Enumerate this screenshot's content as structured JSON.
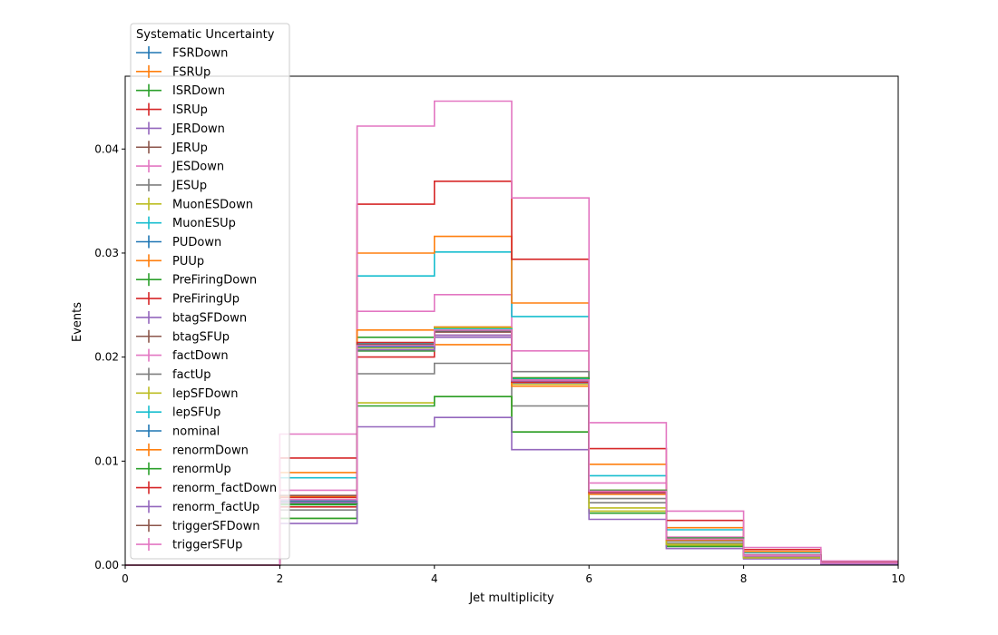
{
  "chart_data": {
    "type": "line",
    "title": "",
    "xlabel": "Jet multiplicity",
    "ylabel": "Events",
    "xlim": [
      0,
      10
    ],
    "ylim": [
      0,
      0.047
    ],
    "grid": false,
    "legend_title": "Systematic Uncertainty",
    "legend_placement": "upper-left",
    "bin_edges": [
      0,
      1,
      2,
      3,
      4,
      5,
      6,
      7,
      8,
      9,
      10
    ],
    "x_ticks": [
      "0",
      "2",
      "4",
      "6",
      "8",
      "10"
    ],
    "y_ticks": [
      "0.00",
      "0.01",
      "0.02",
      "0.03",
      "0.04"
    ],
    "series": [
      {
        "name": "FSRDown",
        "color": "#1f77b4",
        "values": [
          0,
          0,
          0.0061,
          0.0209,
          0.0225,
          0.0178,
          0.007,
          0.0025,
          0.0009,
          0.0002
        ]
      },
      {
        "name": "FSRUp",
        "color": "#ff7f0e",
        "values": [
          0,
          0,
          0.0063,
          0.0212,
          0.0229,
          0.018,
          0.0072,
          0.0026,
          0.001,
          0.0002
        ]
      },
      {
        "name": "ISRDown",
        "color": "#2ca02c",
        "values": [
          0,
          0,
          0.0058,
          0.0219,
          0.0228,
          0.0176,
          0.007,
          0.0025,
          0.0009,
          0.0002
        ]
      },
      {
        "name": "ISRUp",
        "color": "#d62728",
        "values": [
          0,
          0,
          0.0056,
          0.02,
          0.0221,
          0.0176,
          0.007,
          0.0025,
          0.0009,
          0.0002
        ]
      },
      {
        "name": "JERDown",
        "color": "#9467bd",
        "values": [
          0,
          0,
          0.0061,
          0.0206,
          0.0221,
          0.0175,
          0.0069,
          0.0025,
          0.0009,
          0.0002
        ]
      },
      {
        "name": "JERUp",
        "color": "#8c564b",
        "values": [
          0,
          0,
          0.006,
          0.021,
          0.0226,
          0.0177,
          0.0071,
          0.0025,
          0.0009,
          0.0002
        ]
      },
      {
        "name": "JESDown",
        "color": "#e377c2",
        "values": [
          0,
          0,
          0.0072,
          0.0244,
          0.026,
          0.0206,
          0.0079,
          0.0027,
          0.001,
          0.0002
        ]
      },
      {
        "name": "JESUp",
        "color": "#7f7f7f",
        "values": [
          0,
          0,
          0.0053,
          0.0184,
          0.0194,
          0.0153,
          0.006,
          0.0021,
          0.0008,
          0.0002
        ]
      },
      {
        "name": "MuonESDown",
        "color": "#bcbd22",
        "values": [
          0,
          0,
          0.0045,
          0.0156,
          0.0162,
          0.0128,
          0.0052,
          0.0019,
          0.0007,
          0.0001
        ]
      },
      {
        "name": "MuonESUp",
        "color": "#17becf",
        "values": [
          0,
          0,
          0.0084,
          0.0278,
          0.0301,
          0.0239,
          0.0086,
          0.0034,
          0.0012,
          0.0003
        ]
      },
      {
        "name": "PUDown",
        "color": "#1f77b4",
        "values": [
          0,
          0,
          0.0062,
          0.0212,
          0.0227,
          0.0179,
          0.0071,
          0.0025,
          0.0009,
          0.0002
        ]
      },
      {
        "name": "PUUp",
        "color": "#ff7f0e",
        "values": [
          0,
          0,
          0.0089,
          0.03,
          0.0316,
          0.0252,
          0.0097,
          0.0036,
          0.0013,
          0.0003
        ]
      },
      {
        "name": "PreFiringDown",
        "color": "#2ca02c",
        "values": [
          0,
          0,
          0.0045,
          0.0153,
          0.0162,
          0.0128,
          0.005,
          0.0018,
          0.0007,
          0.0001
        ]
      },
      {
        "name": "PreFiringUp",
        "color": "#d62728",
        "values": [
          0,
          0,
          0.0103,
          0.0347,
          0.0369,
          0.0294,
          0.0112,
          0.0043,
          0.0015,
          0.0003
        ]
      },
      {
        "name": "btagSFDown",
        "color": "#9467bd",
        "values": [
          0,
          0,
          0.004,
          0.0133,
          0.0142,
          0.0111,
          0.0044,
          0.0016,
          0.0006,
          0.0001
        ]
      },
      {
        "name": "btagSFUp",
        "color": "#8c564b",
        "values": [
          0,
          0,
          0.006,
          0.0209,
          0.0224,
          0.0177,
          0.007,
          0.0025,
          0.0009,
          0.0002
        ]
      },
      {
        "name": "factDown",
        "color": "#e377c2",
        "values": [
          0,
          0,
          0.0126,
          0.0422,
          0.0446,
          0.0353,
          0.0137,
          0.0052,
          0.0017,
          0.0004
        ]
      },
      {
        "name": "factUp",
        "color": "#7f7f7f",
        "values": [
          0,
          0,
          0.0061,
          0.021,
          0.0226,
          0.0186,
          0.0064,
          0.0023,
          0.0008,
          0.0002
        ]
      },
      {
        "name": "lepSFDown",
        "color": "#bcbd22",
        "values": [
          0,
          0,
          0.0062,
          0.0209,
          0.0228,
          0.0174,
          0.0055,
          0.002,
          0.0007,
          0.0002
        ]
      },
      {
        "name": "lepSFUp",
        "color": "#17becf",
        "values": [
          0,
          0,
          0.0063,
          0.0213,
          0.0227,
          0.0179,
          0.0071,
          0.0026,
          0.0009,
          0.0002
        ]
      },
      {
        "name": "nominal",
        "color": "#1f77b4",
        "values": [
          0,
          0,
          0.0062,
          0.021,
          0.0226,
          0.0178,
          0.0071,
          0.0025,
          0.0009,
          0.0002
        ]
      },
      {
        "name": "renormDown",
        "color": "#ff7f0e",
        "values": [
          0,
          0,
          0.0066,
          0.0226,
          0.0212,
          0.0172,
          0.0068,
          0.0024,
          0.0009,
          0.0002
        ]
      },
      {
        "name": "renormUp",
        "color": "#2ca02c",
        "values": [
          0,
          0,
          0.0059,
          0.0206,
          0.0226,
          0.018,
          0.0072,
          0.0026,
          0.0009,
          0.0002
        ]
      },
      {
        "name": "renorm_factDown",
        "color": "#d62728",
        "values": [
          0,
          0,
          0.0065,
          0.0214,
          0.0226,
          0.0176,
          0.007,
          0.0025,
          0.0009,
          0.0002
        ]
      },
      {
        "name": "renorm_factUp",
        "color": "#9467bd",
        "values": [
          0,
          0,
          0.006,
          0.0207,
          0.0219,
          0.0177,
          0.0071,
          0.0025,
          0.0009,
          0.0002
        ]
      },
      {
        "name": "triggerSFDown",
        "color": "#8c564b",
        "values": [
          0,
          0,
          0.0067,
          0.0212,
          0.0226,
          0.0178,
          0.0071,
          0.0025,
          0.0009,
          0.0002
        ]
      },
      {
        "name": "triggerSFUp",
        "color": "#e377c2",
        "values": [
          0,
          0,
          0.0063,
          0.0211,
          0.0226,
          0.0178,
          0.0071,
          0.0025,
          0.0009,
          0.0002
        ]
      }
    ]
  }
}
